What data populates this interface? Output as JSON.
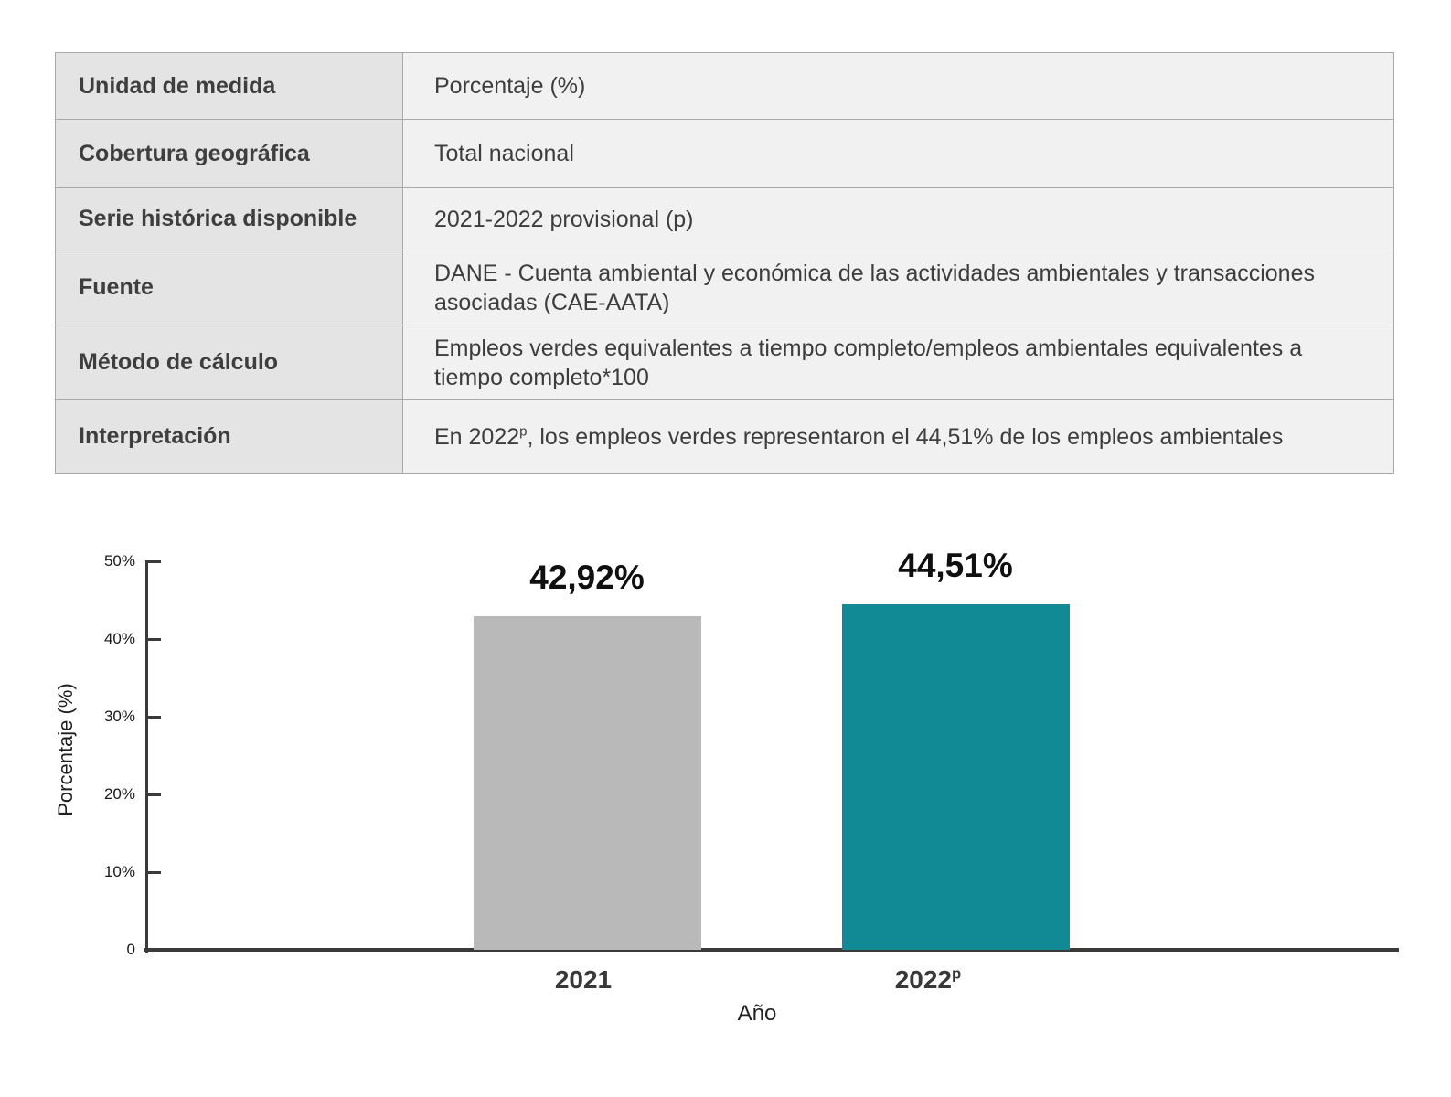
{
  "table": {
    "rows": [
      {
        "label": "Unidad de medida",
        "value": "Porcentaje (%)"
      },
      {
        "label": "Cobertura geográfica",
        "value": "Total nacional"
      },
      {
        "label": "Serie histórica disponible",
        "value": "2021-2022 provisional (p)"
      },
      {
        "label": "Fuente",
        "value": "DANE - Cuenta ambiental y económica de las actividades ambientales y transacciones asociadas (CAE-AATA)"
      },
      {
        "label": "Método de cálculo",
        "value": "Empleos verdes equivalentes a tiempo completo/empleos ambientales equivalentes a tiempo completo*100"
      },
      {
        "label": "Interpretación",
        "value_pre": "En 2022",
        "value_sup": "p",
        "value_post": ", los empleos verdes representaron el 44,51% de los empleos ambientales"
      }
    ]
  },
  "chart_data": {
    "type": "bar",
    "xlabel": "Año",
    "ylabel": "Porcentaje (%)",
    "categories": [
      "2021",
      "2022p"
    ],
    "category_parts": [
      {
        "text": "2021",
        "sup": ""
      },
      {
        "text": "2022",
        "sup": "p"
      }
    ],
    "values": [
      42.92,
      44.51
    ],
    "value_labels": [
      "42,92%",
      "44,51%"
    ],
    "bar_colors": [
      "#b9b9b9",
      "#128a96"
    ],
    "ylim": [
      0,
      50
    ],
    "yticks": [
      0,
      10,
      20,
      30,
      40,
      50
    ],
    "ytick_labels": [
      "0",
      "10%",
      "20%",
      "30%",
      "40%",
      "50%"
    ],
    "grid": false,
    "legend": false,
    "axis_color": "#3a3a3a"
  }
}
